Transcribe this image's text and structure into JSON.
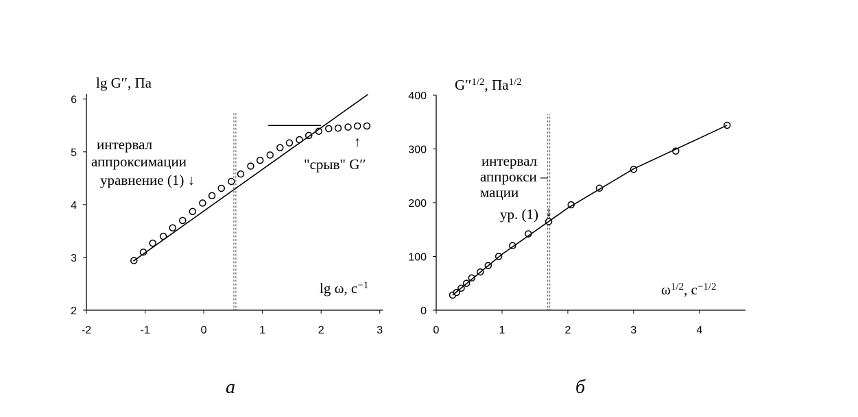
{
  "chart_data": [
    {
      "type": "scatter",
      "caption": "а",
      "y_label": [
        {
          "text": "lg G′′, Па",
          "sup": false
        }
      ],
      "x_label": [
        {
          "text": "lg ω, с",
          "sup": false
        },
        {
          "text": "−1",
          "sup": true
        }
      ],
      "xlim": [
        -2,
        3.05
      ],
      "ylim": [
        2,
        6.1
      ],
      "xticks": [
        -2,
        -1,
        0,
        1,
        2,
        3
      ],
      "yticks": [
        2,
        3,
        4,
        5,
        6
      ],
      "vline": 0.53,
      "annotations": [
        "интервал",
        "аппроксимации",
        "уравнение (1) ↓",
        "\"срыв\" G′′",
        "↑"
      ],
      "series": [
        {
          "style": "markers",
          "color": "#000000",
          "x": [
            -1.19,
            -1.03,
            -0.87,
            -0.69,
            -0.53,
            -0.36,
            -0.19,
            -0.02,
            0.14,
            0.3,
            0.47,
            0.63,
            0.8,
            0.96,
            1.13,
            1.3,
            1.46,
            1.63,
            1.79,
            1.96,
            2.13,
            2.29,
            2.46,
            2.62,
            2.78
          ],
          "values": [
            2.94,
            3.1,
            3.27,
            3.4,
            3.56,
            3.7,
            3.87,
            4.03,
            4.17,
            4.31,
            4.44,
            4.58,
            4.73,
            4.84,
            4.94,
            5.08,
            5.17,
            5.23,
            5.31,
            5.39,
            5.44,
            5.45,
            5.47,
            5.49,
            5.49
          ]
        },
        {
          "style": "line",
          "color": "#000000",
          "x": [
            -1.2,
            2.8
          ],
          "values": [
            2.93,
            6.09
          ]
        },
        {
          "style": "line",
          "color": "#000000",
          "x": [
            1.1,
            2.0
          ],
          "values": [
            5.5,
            5.5
          ]
        }
      ]
    },
    {
      "type": "scatter",
      "caption": "б",
      "y_label": [
        {
          "text": "G′′",
          "sup": false
        },
        {
          "text": "1/2",
          "sup": true
        },
        {
          "text": ", Па",
          "sup": false
        },
        {
          "text": "1/2",
          "sup": true
        }
      ],
      "x_label": [
        {
          "text": "ω",
          "sup": false
        },
        {
          "text": "1/2",
          "sup": true
        },
        {
          "text": ", с",
          "sup": false
        },
        {
          "text": "−1/2",
          "sup": true
        }
      ],
      "xlim": [
        0,
        4.7
      ],
      "ylim": [
        0,
        400
      ],
      "xticks": [
        0,
        1,
        2,
        3,
        4
      ],
      "yticks": [
        0,
        100,
        200,
        300,
        400
      ],
      "vline": 1.71,
      "annotations": [
        "интервал",
        "аппрокси –",
        "мации",
        "ур. (1)",
        "↓"
      ],
      "series": [
        {
          "style": "markers",
          "color": "#000000",
          "x": [
            0.25,
            0.31,
            0.38,
            0.46,
            0.54,
            0.67,
            0.79,
            0.95,
            1.16,
            1.4,
            1.71,
            2.05,
            2.48,
            3.0,
            3.64,
            4.42
          ],
          "values": [
            28,
            33,
            41,
            50,
            60,
            71,
            83,
            100,
            120,
            142,
            165,
            196,
            227,
            262,
            296,
            344
          ]
        },
        {
          "style": "line",
          "color": "#000000",
          "x": [
            0.25,
            1.0,
            2.0,
            3.0,
            4.0,
            4.42
          ],
          "values": [
            28,
            104,
            190,
            263,
            320,
            344
          ]
        }
      ]
    }
  ]
}
